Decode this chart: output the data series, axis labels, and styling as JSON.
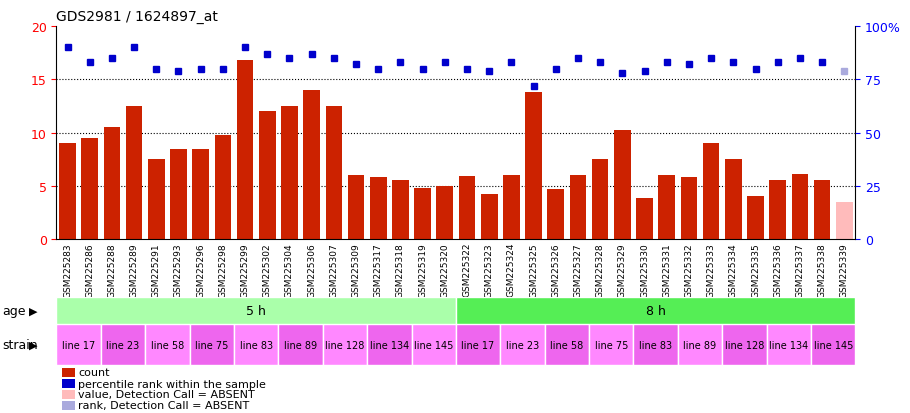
{
  "title": "GDS2981 / 1624897_at",
  "samples": [
    "GSM225283",
    "GSM225286",
    "GSM225288",
    "GSM225289",
    "GSM225291",
    "GSM225293",
    "GSM225296",
    "GSM225298",
    "GSM225299",
    "GSM225302",
    "GSM225304",
    "GSM225306",
    "GSM225307",
    "GSM225309",
    "GSM225317",
    "GSM225318",
    "GSM225319",
    "GSM225320",
    "GSM225322",
    "GSM225323",
    "GSM225324",
    "GSM225325",
    "GSM225326",
    "GSM225327",
    "GSM225328",
    "GSM225329",
    "GSM225330",
    "GSM225331",
    "GSM225332",
    "GSM225333",
    "GSM225334",
    "GSM225335",
    "GSM225336",
    "GSM225337",
    "GSM225338",
    "GSM225339"
  ],
  "counts": [
    9.0,
    9.5,
    10.5,
    12.5,
    7.5,
    8.5,
    8.5,
    9.8,
    16.8,
    12.0,
    12.5,
    14.0,
    12.5,
    6.0,
    5.8,
    5.5,
    4.8,
    5.0,
    5.9,
    4.2,
    6.0,
    13.8,
    4.7,
    6.0,
    7.5,
    10.2,
    3.9,
    6.0,
    5.8,
    9.0,
    7.5,
    4.0,
    5.5,
    6.1,
    5.5,
    3.5
  ],
  "percentiles": [
    90,
    83,
    85,
    90,
    80,
    79,
    80,
    80,
    90,
    87,
    85,
    87,
    85,
    82,
    80,
    83,
    80,
    83,
    80,
    79,
    83,
    72,
    80,
    85,
    83,
    78,
    79,
    83,
    82,
    85,
    83,
    80,
    83,
    85,
    83,
    79
  ],
  "absent_flags": [
    false,
    false,
    false,
    false,
    false,
    false,
    false,
    false,
    false,
    false,
    false,
    false,
    false,
    false,
    false,
    false,
    false,
    false,
    false,
    false,
    false,
    false,
    false,
    false,
    false,
    false,
    false,
    false,
    false,
    false,
    false,
    false,
    false,
    false,
    false,
    true
  ],
  "age_groups": [
    {
      "label": "5 h",
      "start": 0,
      "end": 18,
      "color": "#aaffaa"
    },
    {
      "label": "8 h",
      "start": 18,
      "end": 36,
      "color": "#55ee55"
    }
  ],
  "strain_groups": [
    {
      "label": "line 17",
      "start": 0,
      "end": 2,
      "color": "#ff88ff"
    },
    {
      "label": "line 23",
      "start": 2,
      "end": 4,
      "color": "#ee66ee"
    },
    {
      "label": "line 58",
      "start": 4,
      "end": 6,
      "color": "#ff88ff"
    },
    {
      "label": "line 75",
      "start": 6,
      "end": 8,
      "color": "#ee66ee"
    },
    {
      "label": "line 83",
      "start": 8,
      "end": 10,
      "color": "#ff88ff"
    },
    {
      "label": "line 89",
      "start": 10,
      "end": 12,
      "color": "#ee66ee"
    },
    {
      "label": "line 128",
      "start": 12,
      "end": 14,
      "color": "#ff88ff"
    },
    {
      "label": "line 134",
      "start": 14,
      "end": 16,
      "color": "#ee66ee"
    },
    {
      "label": "line 145",
      "start": 16,
      "end": 18,
      "color": "#ff88ff"
    },
    {
      "label": "line 17",
      "start": 18,
      "end": 20,
      "color": "#ee66ee"
    },
    {
      "label": "line 23",
      "start": 20,
      "end": 22,
      "color": "#ff88ff"
    },
    {
      "label": "line 58",
      "start": 22,
      "end": 24,
      "color": "#ee66ee"
    },
    {
      "label": "line 75",
      "start": 24,
      "end": 26,
      "color": "#ff88ff"
    },
    {
      "label": "line 83",
      "start": 26,
      "end": 28,
      "color": "#ee66ee"
    },
    {
      "label": "line 89",
      "start": 28,
      "end": 30,
      "color": "#ff88ff"
    },
    {
      "label": "line 128",
      "start": 30,
      "end": 32,
      "color": "#ee66ee"
    },
    {
      "label": "line 134",
      "start": 32,
      "end": 34,
      "color": "#ff88ff"
    },
    {
      "label": "line 145",
      "start": 34,
      "end": 36,
      "color": "#ee66ee"
    }
  ],
  "bar_color_normal": "#cc2200",
  "bar_color_absent": "#ffbbbb",
  "dot_color_normal": "#0000cc",
  "dot_color_absent": "#aaaadd",
  "ylim_left": [
    0,
    20
  ],
  "ylim_right": [
    0,
    100
  ],
  "yticks_left": [
    0,
    5,
    10,
    15,
    20
  ],
  "yticks_right": [
    0,
    25,
    50,
    75,
    100
  ],
  "ytick_labels_left": [
    "0",
    "5",
    "10",
    "15",
    "20"
  ],
  "ytick_labels_right": [
    "0",
    "25",
    "50",
    "75",
    "100%"
  ],
  "grid_lines": [
    5,
    10,
    15
  ],
  "background_color": "#ffffff",
  "plot_bg_color": "#ffffff",
  "legend_items": [
    {
      "label": "count",
      "color": "#cc2200"
    },
    {
      "label": "percentile rank within the sample",
      "color": "#0000cc"
    },
    {
      "label": "value, Detection Call = ABSENT",
      "color": "#ffbbbb"
    },
    {
      "label": "rank, Detection Call = ABSENT",
      "color": "#aaaadd"
    }
  ]
}
